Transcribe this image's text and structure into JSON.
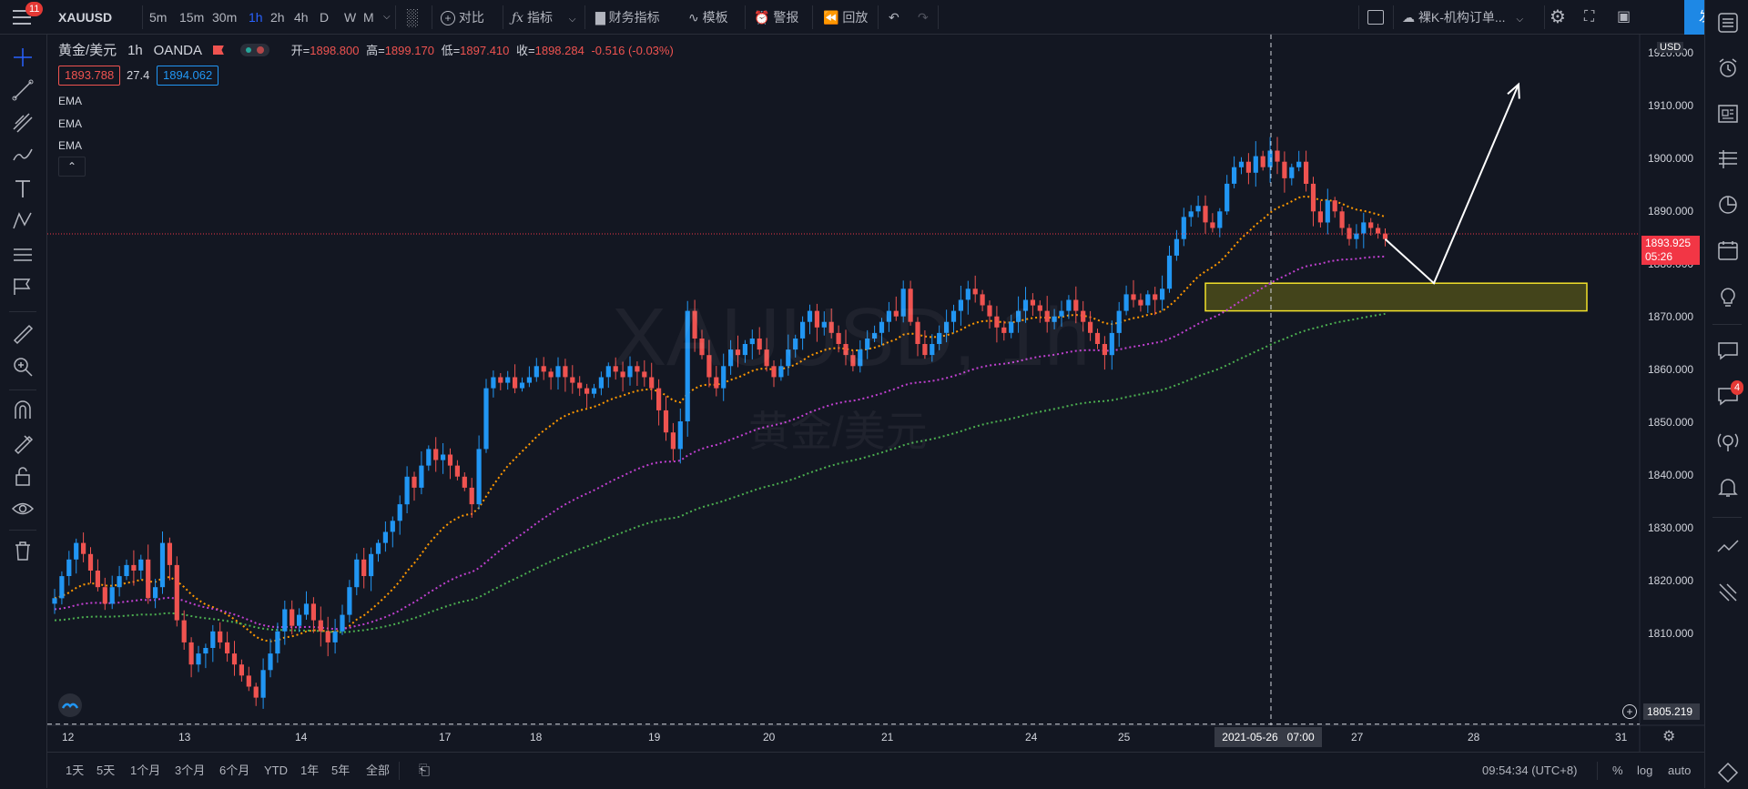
{
  "topbar": {
    "menu_badge": "11",
    "symbol": "XAUUSD",
    "intervals": [
      "5m",
      "15m",
      "30m",
      "1h",
      "2h",
      "4h",
      "D",
      "W",
      "M"
    ],
    "active_interval": "1h",
    "compare_label": "对比",
    "indicators_label": "指标",
    "financials_label": "财务指标",
    "templates_label": "模板",
    "alert_label": "警报",
    "replay_label": "回放",
    "layout_name": "裸K-机构订单...",
    "publish_label": "发表"
  },
  "legend": {
    "title": "黄金/美元",
    "interval": "1h",
    "source": "OANDA",
    "open_label": "开=",
    "open": "1898.800",
    "high_label": "高=",
    "high": "1899.170",
    "low_label": "低=",
    "low": "1897.410",
    "close_label": "收=",
    "close": "1898.284",
    "change": "-0.516 (-0.03%)",
    "bid": "1893.788",
    "spread": "27.4",
    "ask": "1894.062",
    "indicators": [
      "EMA",
      "EMA",
      "EMA"
    ]
  },
  "watermark": {
    "symbol": "XAUUSD, 1h",
    "name": "黄金/美元"
  },
  "price_axis": {
    "currency": "USD",
    "ticks": [
      "1920.000",
      "1910.000",
      "1900.000",
      "1890.000",
      "1880.000",
      "1870.000",
      "1860.000",
      "1850.000",
      "1840.000",
      "1830.000",
      "1820.000",
      "1810.000"
    ],
    "last_price": "1893.925",
    "countdown": "05:26",
    "crosshair_price": "1805.219"
  },
  "time_axis": {
    "labels": [
      "12",
      "13",
      "14",
      "17",
      "18",
      "19",
      "20",
      "21",
      "24",
      "25",
      "27",
      "28",
      "31"
    ],
    "crosshair_time": "2021-05-26   07:00"
  },
  "bottombar": {
    "ranges": [
      "1天",
      "5天",
      "1个月",
      "3个月",
      "6个月",
      "YTD",
      "1年",
      "5年",
      "全部"
    ],
    "clock": "09:54:34 (UTC+8)",
    "percent_label": "%",
    "log_label": "log",
    "auto_label": "auto"
  },
  "rightbar": {
    "badge": "4"
  },
  "colors": {
    "bg": "#131722",
    "up": "#2196f3",
    "down": "#ef5350",
    "ema_fast": "#ff9800",
    "ema_mid": "#c040d0",
    "ema_slow": "#4caf50",
    "zone_fill": "#6b6a16",
    "zone_border": "#f2e12b",
    "accent": "#2962ff"
  },
  "chart_data": {
    "type": "candlestick",
    "symbol": "XAUUSD",
    "interval": "1h",
    "ylim": [
      1805,
      1930
    ],
    "x_ticks": [
      "12",
      "13",
      "14",
      "17",
      "18",
      "19",
      "20",
      "21",
      "24",
      "25",
      "26",
      "27",
      "28",
      "31"
    ],
    "closes": [
      1828,
      1832,
      1835,
      1838,
      1836,
      1833,
      1830,
      1827,
      1830,
      1832,
      1834,
      1833,
      1835,
      1828,
      1830,
      1838,
      1834,
      1824,
      1820,
      1816,
      1818,
      1819,
      1822,
      1820,
      1818,
      1816,
      1814,
      1812,
      1810,
      1815,
      1818,
      1822,
      1826,
      1823,
      1825,
      1827,
      1824,
      1822,
      1820,
      1822,
      1825,
      1830,
      1835,
      1832,
      1836,
      1838,
      1840,
      1842,
      1845,
      1850,
      1848,
      1852,
      1855,
      1853,
      1854,
      1852,
      1850,
      1848,
      1845,
      1855,
      1866,
      1868,
      1867,
      1868,
      1866,
      1867,
      1868,
      1870,
      1869,
      1868,
      1870,
      1868,
      1867,
      1866,
      1865,
      1866,
      1868,
      1870,
      1869,
      1868,
      1870,
      1869,
      1868,
      1866,
      1862,
      1858,
      1855,
      1860,
      1880,
      1875,
      1872,
      1868,
      1866,
      1870,
      1873,
      1872,
      1874,
      1875,
      1873,
      1870,
      1868,
      1870,
      1873,
      1875,
      1878,
      1880,
      1877,
      1878,
      1876,
      1874,
      1872,
      1870,
      1873,
      1875,
      1876,
      1878,
      1880,
      1879,
      1884,
      1878,
      1874,
      1872,
      1874,
      1876,
      1878,
      1880,
      1882,
      1884,
      1883,
      1881,
      1879,
      1877,
      1876,
      1878,
      1880,
      1882,
      1881,
      1880,
      1878,
      1879,
      1880,
      1882,
      1880,
      1878,
      1876,
      1874,
      1872,
      1876,
      1880,
      1883,
      1882,
      1881,
      1883,
      1882,
      1884,
      1890,
      1893,
      1897,
      1898,
      1899,
      1896,
      1895,
      1898,
      1903,
      1906,
      1907,
      1905,
      1908,
      1906,
      1909,
      1907,
      1904,
      1906,
      1907,
      1903,
      1898,
      1896,
      1900,
      1898,
      1895,
      1893,
      1894,
      1896,
      1895,
      1894,
      1893
    ],
    "ema_fast_endpoints": [
      1830,
      1894
    ],
    "ema_mid_endpoints": [
      1822,
      1889
    ],
    "ema_slow_endpoints": [
      1817,
      1885
    ],
    "demand_zone": {
      "low": 1880,
      "high": 1885
    },
    "projection_path": [
      1893,
      1885,
      1921
    ]
  }
}
